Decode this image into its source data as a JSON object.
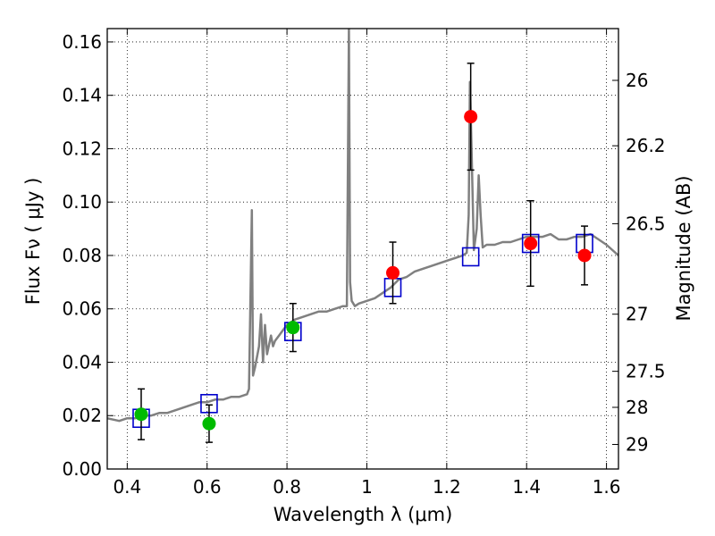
{
  "chart_data": {
    "type": "scatter",
    "title": "",
    "xlabel": "Wavelength  λ (μm)",
    "ylabel": "Flux  Fν ( μJy )",
    "y2label": "Magnitude (AB)",
    "xlim": [
      0.35,
      1.63
    ],
    "ylim": [
      0.0,
      0.165
    ],
    "grid": true,
    "xticks": [
      0.4,
      0.6,
      0.8,
      1,
      1.2,
      1.4,
      1.6
    ],
    "yticks": [
      0.0,
      0.02,
      0.04,
      0.06,
      0.08,
      0.1,
      0.12,
      0.14,
      0.16
    ],
    "y2ticks": [
      {
        "label": "26",
        "flux": 0.1456
      },
      {
        "label": "26.2",
        "flux": 0.1211
      },
      {
        "label": "26.5",
        "flux": 0.0919
      },
      {
        "label": "27",
        "flux": 0.058
      },
      {
        "label": "27.5",
        "flux": 0.0366
      },
      {
        "label": "28",
        "flux": 0.0231
      },
      {
        "label": "29",
        "flux": 0.0092
      }
    ],
    "colors": {
      "spectrum": "#808080",
      "model_box": "#0000cc",
      "green_point": "#00bb00",
      "red_point": "#ff0000",
      "errorbar": "#000000"
    },
    "series": [
      {
        "kind": "spectrum",
        "x": [
          0.35,
          0.38,
          0.4,
          0.42,
          0.44,
          0.46,
          0.48,
          0.5,
          0.52,
          0.54,
          0.56,
          0.58,
          0.6,
          0.62,
          0.64,
          0.66,
          0.68,
          0.7,
          0.705,
          0.712,
          0.715,
          0.72,
          0.73,
          0.735,
          0.74,
          0.745,
          0.75,
          0.76,
          0.765,
          0.77,
          0.78,
          0.79,
          0.8,
          0.81,
          0.82,
          0.84,
          0.86,
          0.88,
          0.9,
          0.92,
          0.94,
          0.95,
          0.955,
          0.958,
          0.962,
          0.97,
          0.98,
          1.0,
          1.02,
          1.04,
          1.06,
          1.08,
          1.1,
          1.12,
          1.14,
          1.16,
          1.18,
          1.2,
          1.22,
          1.24,
          1.25,
          1.255,
          1.258,
          1.262,
          1.268,
          1.275,
          1.28,
          1.285,
          1.29,
          1.3,
          1.32,
          1.34,
          1.36,
          1.38,
          1.4,
          1.42,
          1.44,
          1.46,
          1.48,
          1.5,
          1.52,
          1.54,
          1.56,
          1.58,
          1.6,
          1.63
        ],
        "y": [
          0.019,
          0.018,
          0.019,
          0.019,
          0.02,
          0.02,
          0.021,
          0.021,
          0.022,
          0.023,
          0.024,
          0.025,
          0.025,
          0.026,
          0.026,
          0.027,
          0.027,
          0.028,
          0.03,
          0.097,
          0.035,
          0.038,
          0.046,
          0.058,
          0.04,
          0.054,
          0.043,
          0.05,
          0.046,
          0.048,
          0.05,
          0.052,
          0.054,
          0.055,
          0.056,
          0.057,
          0.058,
          0.059,
          0.059,
          0.06,
          0.061,
          0.061,
          0.165,
          0.07,
          0.063,
          0.061,
          0.062,
          0.063,
          0.064,
          0.066,
          0.068,
          0.071,
          0.072,
          0.074,
          0.075,
          0.076,
          0.077,
          0.078,
          0.079,
          0.08,
          0.081,
          0.095,
          0.145,
          0.12,
          0.082,
          0.09,
          0.11,
          0.095,
          0.083,
          0.084,
          0.084,
          0.085,
          0.085,
          0.086,
          0.087,
          0.087,
          0.087,
          0.088,
          0.086,
          0.086,
          0.087,
          0.087,
          0.088,
          0.086,
          0.084,
          0.08
        ]
      },
      {
        "kind": "model_boxes",
        "x": [
          0.435,
          0.605,
          0.815,
          1.065,
          1.26,
          1.41,
          1.545
        ],
        "y": [
          0.019,
          0.0245,
          0.0515,
          0.068,
          0.0795,
          0.0845,
          0.0845
        ]
      },
      {
        "kind": "points_green",
        "x": [
          0.435,
          0.605,
          0.815
        ],
        "y": [
          0.0205,
          0.017,
          0.053
        ],
        "yerr": [
          0.0095,
          0.007,
          0.009
        ]
      },
      {
        "kind": "points_red",
        "x": [
          1.065,
          1.26,
          1.41,
          1.545
        ],
        "y": [
          0.0735,
          0.132,
          0.0845,
          0.08
        ],
        "yerr": [
          0.0115,
          0.02,
          0.016,
          0.011
        ]
      }
    ]
  }
}
